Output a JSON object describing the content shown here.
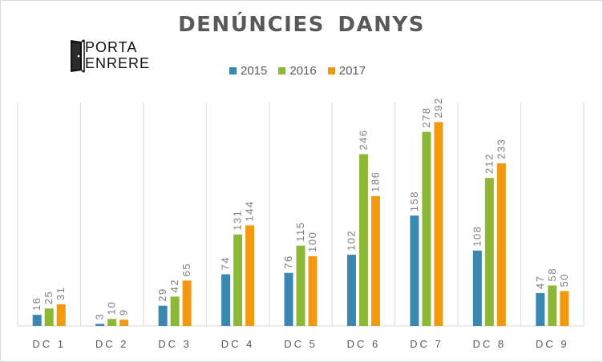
{
  "logo": {
    "line1": "PORTA",
    "line2": "ENRERE"
  },
  "chart_data": {
    "type": "bar",
    "title": "DENÚNCIES DANYS",
    "categories": [
      "DC 1",
      "DC 2",
      "DC 3",
      "DC 4",
      "DC 5",
      "DC 6",
      "DC 7",
      "DC 8",
      "DC 9"
    ],
    "series": [
      {
        "name": "2015",
        "color": "#3a87b0",
        "values": [
          16,
          3,
          29,
          74,
          76,
          102,
          158,
          108,
          47
        ]
      },
      {
        "name": "2016",
        "color": "#8db836",
        "values": [
          25,
          10,
          42,
          131,
          115,
          246,
          278,
          212,
          58
        ]
      },
      {
        "name": "2017",
        "color": "#f2990f",
        "values": [
          31,
          9,
          65,
          144,
          100,
          186,
          292,
          233,
          50
        ]
      }
    ],
    "ylim": [
      0,
      320
    ],
    "legend": "top",
    "data_labels": true,
    "gridlines": "vertical category separators"
  }
}
